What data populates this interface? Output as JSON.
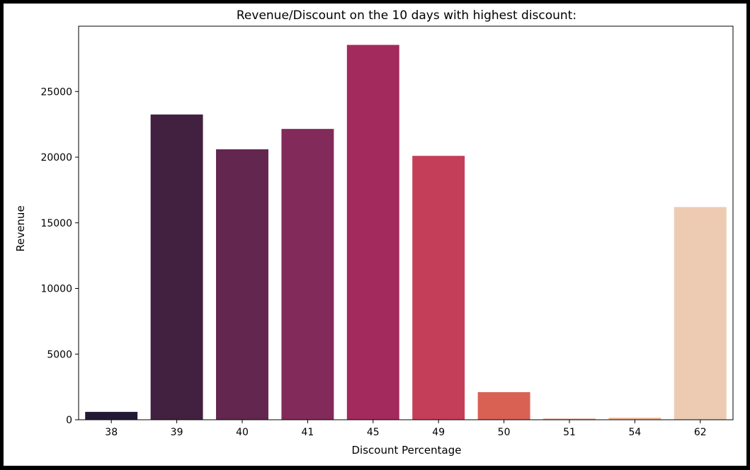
{
  "chart_data": {
    "type": "bar",
    "title": "Revenue/Discount on the 10 days with highest discount:",
    "xlabel": "Discount Percentage",
    "ylabel": "Revenue",
    "categories": [
      "38",
      "39",
      "40",
      "41",
      "45",
      "49",
      "50",
      "51",
      "54",
      "62"
    ],
    "values": [
      600,
      23250,
      20600,
      22150,
      28550,
      20100,
      2100,
      80,
      150,
      16200
    ],
    "colors": [
      "#241932",
      "#422040",
      "#63264f",
      "#822a59",
      "#a32a5c",
      "#c43e59",
      "#d96154",
      "#e98f6d",
      "#f1b592",
      "#edcbb2"
    ],
    "yticks": [
      0,
      5000,
      10000,
      15000,
      20000,
      25000
    ],
    "ylim": [
      0,
      29975
    ],
    "grid": false,
    "legend": "none"
  }
}
